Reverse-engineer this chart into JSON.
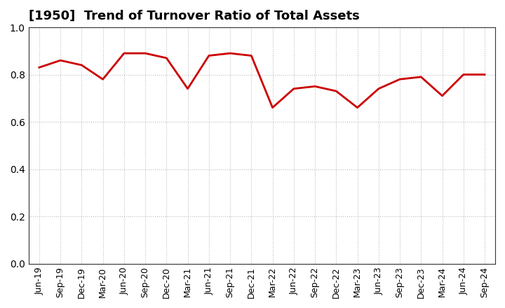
{
  "title": "[1950]  Trend of Turnover Ratio of Total Assets",
  "x_labels": [
    "Jun-19",
    "Sep-19",
    "Dec-19",
    "Mar-20",
    "Jun-20",
    "Sep-20",
    "Dec-20",
    "Mar-21",
    "Jun-21",
    "Sep-21",
    "Dec-21",
    "Mar-22",
    "Jun-22",
    "Sep-22",
    "Dec-22",
    "Mar-23",
    "Jun-23",
    "Sep-23",
    "Dec-23",
    "Mar-24",
    "Jun-24",
    "Sep-24"
  ],
  "y_values": [
    0.83,
    0.86,
    0.84,
    0.78,
    0.89,
    0.89,
    0.87,
    0.74,
    0.88,
    0.89,
    0.88,
    0.66,
    0.74,
    0.75,
    0.73,
    0.66,
    0.74,
    0.78,
    0.79,
    0.71,
    0.8,
    0.8
  ],
  "line_color": "#cc0000",
  "line_width": 2.0,
  "ylim": [
    0.0,
    1.0
  ],
  "yticks": [
    0.0,
    0.2,
    0.4,
    0.6,
    0.8,
    1.0
  ],
  "background_color": "#ffffff",
  "grid_color": "#bbbbbb",
  "title_fontsize": 13,
  "tick_fontsize": 9,
  "spine_color": "#333333"
}
